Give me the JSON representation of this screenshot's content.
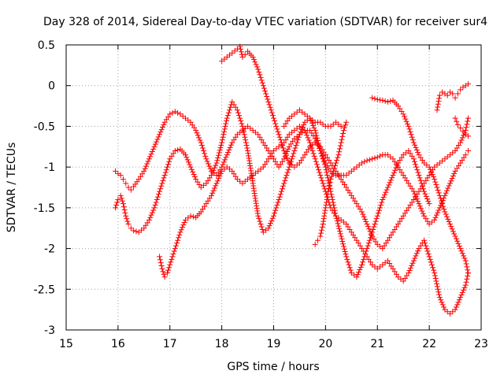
{
  "chart_data": {
    "type": "scatter",
    "title": "Day 328 of 2014, Sidereal Day-to-day VTEC variation (SDTVAR) for receiver sur4",
    "xlabel": "GPS time / hours",
    "ylabel": "SDTVAR / TECUs",
    "xlim": [
      15,
      23
    ],
    "ylim": [
      -3,
      0.5
    ],
    "xticks": [
      15,
      16,
      17,
      18,
      19,
      20,
      21,
      22,
      23
    ],
    "yticks": [
      -3,
      -2.5,
      -2,
      -1.5,
      -1,
      -0.5,
      0,
      0.5
    ],
    "ytick_labels": [
      "-3",
      "-2.5",
      "-2",
      "-1.5",
      "-1",
      "-0.5",
      "0",
      "0.5"
    ],
    "grid": true,
    "marker": "+",
    "color": "#ff0000",
    "series": [
      {
        "name": "s1",
        "x": [
          15.95,
          16.0,
          16.05,
          16.1,
          16.15,
          16.2,
          16.25,
          16.3,
          16.4,
          16.5,
          16.6,
          16.7,
          16.8,
          16.9,
          17.0,
          17.1,
          17.2,
          17.3,
          17.4,
          17.5,
          17.6,
          17.7,
          17.8,
          17.9,
          18.0,
          18.1,
          18.2,
          18.3,
          18.4,
          18.5,
          18.6,
          18.7,
          18.8,
          18.9,
          19.0,
          19.1,
          19.2,
          19.3,
          19.4,
          19.5,
          19.6,
          19.7,
          19.8,
          19.9,
          20.0,
          20.1,
          20.2,
          20.3,
          20.4,
          20.5,
          20.6,
          20.7,
          20.8,
          20.9,
          21.0,
          21.1,
          21.2,
          21.3,
          21.4,
          21.5,
          21.6,
          21.7,
          21.8,
          21.9,
          22.0,
          22.1,
          22.2,
          22.3,
          22.4,
          22.5,
          22.6,
          22.7,
          22.75
        ],
        "y": [
          -1.05,
          -1.08,
          -1.1,
          -1.15,
          -1.2,
          -1.25,
          -1.28,
          -1.24,
          -1.15,
          -1.05,
          -0.9,
          -0.75,
          -0.6,
          -0.45,
          -0.35,
          -0.32,
          -0.35,
          -0.4,
          -0.45,
          -0.55,
          -0.7,
          -0.9,
          -1.05,
          -1.1,
          -1.0,
          -0.85,
          -0.7,
          -0.6,
          -0.55,
          -0.5,
          -0.55,
          -0.6,
          -0.7,
          -0.8,
          -0.9,
          -1.0,
          -0.9,
          -0.75,
          -0.65,
          -0.6,
          -0.55,
          -0.55,
          -0.65,
          -0.8,
          -0.95,
          -1.05,
          -1.1,
          -1.1,
          -1.1,
          -1.05,
          -1.0,
          -0.95,
          -0.92,
          -0.9,
          -0.88,
          -0.85,
          -0.85,
          -0.9,
          -1.0,
          -1.1,
          -1.2,
          -1.3,
          -1.45,
          -1.6,
          -1.7,
          -1.65,
          -1.5,
          -1.35,
          -1.2,
          -1.05,
          -0.95,
          -0.85,
          -0.8
        ]
      },
      {
        "name": "s2",
        "x": [
          15.95,
          16.0,
          16.05,
          16.1,
          16.15,
          16.2,
          16.25,
          16.3,
          16.4,
          16.5,
          16.6,
          16.7,
          16.8,
          16.9,
          17.0,
          17.1,
          17.2,
          17.3,
          17.4,
          17.5,
          17.6,
          17.7,
          17.8,
          17.9,
          18.0,
          18.1,
          18.2,
          18.3,
          18.4,
          18.5,
          18.6,
          18.7,
          18.8,
          18.9,
          19.0,
          19.1,
          19.2,
          19.3,
          19.4,
          19.5,
          19.6,
          19.7,
          19.8,
          19.9,
          20.0,
          20.1,
          20.2,
          20.3,
          20.4,
          20.5,
          20.6,
          20.7,
          20.8,
          20.9,
          21.0,
          21.1,
          21.2,
          21.3,
          21.4,
          21.5,
          21.6,
          21.7,
          21.8,
          21.9,
          22.0
        ],
        "y": [
          -1.5,
          -1.4,
          -1.35,
          -1.45,
          -1.6,
          -1.7,
          -1.75,
          -1.78,
          -1.8,
          -1.75,
          -1.65,
          -1.5,
          -1.3,
          -1.1,
          -0.9,
          -0.8,
          -0.78,
          -0.85,
          -1.0,
          -1.15,
          -1.25,
          -1.2,
          -1.1,
          -0.95,
          -0.7,
          -0.4,
          -0.2,
          -0.3,
          -0.5,
          -0.8,
          -1.2,
          -1.6,
          -1.8,
          -1.75,
          -1.6,
          -1.4,
          -1.2,
          -1.0,
          -0.8,
          -0.6,
          -0.45,
          -0.4,
          -0.55,
          -0.8,
          -1.0,
          -1.3,
          -1.6,
          -1.85,
          -2.1,
          -2.3,
          -2.35,
          -2.2,
          -2.0,
          -1.8,
          -1.6,
          -1.4,
          -1.25,
          -1.1,
          -0.95,
          -0.85,
          -0.8,
          -0.9,
          -1.1,
          -1.3,
          -1.45
        ]
      },
      {
        "name": "s3",
        "x": [
          16.8,
          16.85,
          16.9,
          16.95,
          17.0,
          17.1,
          17.2,
          17.3,
          17.4,
          17.5,
          17.6,
          17.7,
          17.8,
          17.9,
          18.0,
          18.1,
          18.2,
          18.3,
          18.4,
          18.5,
          18.6,
          18.7,
          18.8,
          18.9,
          19.0,
          19.1,
          19.2,
          19.3,
          19.4,
          19.5,
          19.6,
          19.7,
          19.8,
          19.9,
          20.0,
          20.1,
          20.2,
          20.3,
          20.4,
          20.5,
          20.6,
          20.7,
          20.8,
          20.9,
          21.0,
          21.1,
          21.2,
          21.3,
          21.4,
          21.5,
          21.6,
          21.7,
          21.8,
          21.9,
          22.0,
          22.1,
          22.2,
          22.3,
          22.4,
          22.5,
          22.6,
          22.7,
          22.75
        ],
        "y": [
          -2.1,
          -2.25,
          -2.35,
          -2.3,
          -2.2,
          -2.0,
          -1.8,
          -1.65,
          -1.6,
          -1.62,
          -1.55,
          -1.45,
          -1.35,
          -1.2,
          -1.05,
          -1.0,
          -1.05,
          -1.15,
          -1.2,
          -1.15,
          -1.1,
          -1.05,
          -1.0,
          -0.9,
          -0.8,
          -0.75,
          -0.7,
          -0.6,
          -0.55,
          -0.5,
          -0.55,
          -0.7,
          -0.9,
          -1.1,
          -1.3,
          -1.5,
          -1.6,
          -1.65,
          -1.7,
          -1.8,
          -1.9,
          -2.0,
          -2.1,
          -2.2,
          -2.25,
          -2.2,
          -2.15,
          -2.25,
          -2.35,
          -2.4,
          -2.3,
          -2.15,
          -2.0,
          -1.9,
          -2.1,
          -2.3,
          -2.6,
          -2.75,
          -2.8,
          -2.75,
          -2.6,
          -2.45,
          -2.3
        ]
      },
      {
        "name": "s4",
        "x": [
          18.0,
          18.1,
          18.2,
          18.3,
          18.35,
          18.4,
          18.45,
          18.5,
          18.6,
          18.7,
          18.8,
          18.9,
          19.0,
          19.1,
          19.2,
          19.3,
          19.4,
          19.5,
          19.6,
          19.7,
          19.8,
          19.9,
          20.0,
          20.1,
          20.2,
          20.3,
          20.4,
          20.5,
          20.6,
          20.7,
          20.8,
          20.9,
          21.0,
          21.1,
          21.2,
          21.3,
          21.4,
          21.5,
          21.6,
          21.7,
          21.8,
          21.9,
          22.0,
          22.1,
          22.2,
          22.3,
          22.4,
          22.5,
          22.6,
          22.7,
          22.75
        ],
        "y": [
          0.3,
          0.35,
          0.4,
          0.45,
          0.48,
          0.35,
          0.38,
          0.42,
          0.35,
          0.2,
          0.0,
          -0.2,
          -0.4,
          -0.6,
          -0.8,
          -0.95,
          -1.0,
          -0.95,
          -0.85,
          -0.75,
          -0.7,
          -0.75,
          -0.85,
          -0.95,
          -1.05,
          -1.15,
          -1.25,
          -1.35,
          -1.45,
          -1.55,
          -1.7,
          -1.85,
          -1.95,
          -2.0,
          -1.9,
          -1.8,
          -1.7,
          -1.6,
          -1.5,
          -1.4,
          -1.3,
          -1.2,
          -1.1,
          -1.0,
          -0.95,
          -0.9,
          -0.85,
          -0.8,
          -0.7,
          -0.55,
          -0.4
        ]
      },
      {
        "name": "s5",
        "x": [
          20.9,
          21.0,
          21.1,
          21.2,
          21.3,
          21.4,
          21.5,
          21.6,
          21.7,
          21.8,
          21.9,
          22.0,
          22.1,
          22.2,
          22.3,
          22.4,
          22.5,
          22.6,
          22.7,
          22.75
        ],
        "y": [
          -0.15,
          -0.17,
          -0.18,
          -0.2,
          -0.18,
          -0.25,
          -0.35,
          -0.5,
          -0.7,
          -0.85,
          -0.95,
          -1.0,
          -1.15,
          -1.35,
          -1.55,
          -1.7,
          -1.85,
          -2.0,
          -2.15,
          -2.3
        ]
      },
      {
        "name": "s6",
        "x": [
          22.15,
          22.2,
          22.25,
          22.3,
          22.35,
          22.4,
          22.45,
          22.5,
          22.55,
          22.6,
          22.65,
          22.7,
          22.75
        ],
        "y": [
          -0.3,
          -0.12,
          -0.08,
          -0.1,
          -0.12,
          -0.08,
          -0.1,
          -0.15,
          -0.1,
          -0.05,
          -0.02,
          0.0,
          0.02
        ]
      },
      {
        "name": "s7",
        "x": [
          22.5,
          22.55,
          22.6,
          22.65,
          22.7,
          22.75
        ],
        "y": [
          -0.4,
          -0.48,
          -0.52,
          -0.56,
          -0.6,
          -0.62
        ]
      },
      {
        "name": "s8",
        "x": [
          19.8,
          19.85,
          19.9,
          19.95,
          20.0,
          20.05,
          20.1,
          20.15,
          20.2,
          20.25,
          20.3,
          20.35,
          20.4
        ],
        "y": [
          -1.95,
          -1.9,
          -1.85,
          -1.7,
          -1.5,
          -1.3,
          -1.15,
          -1.05,
          -0.95,
          -0.85,
          -0.7,
          -0.55,
          -0.45
        ]
      },
      {
        "name": "s9",
        "x": [
          19.2,
          19.3,
          19.4,
          19.5,
          19.6,
          19.7,
          19.8,
          19.9,
          20.0,
          20.1,
          20.2,
          20.3
        ],
        "y": [
          -0.5,
          -0.4,
          -0.35,
          -0.3,
          -0.35,
          -0.4,
          -0.45,
          -0.45,
          -0.5,
          -0.5,
          -0.45,
          -0.5
        ]
      }
    ]
  }
}
